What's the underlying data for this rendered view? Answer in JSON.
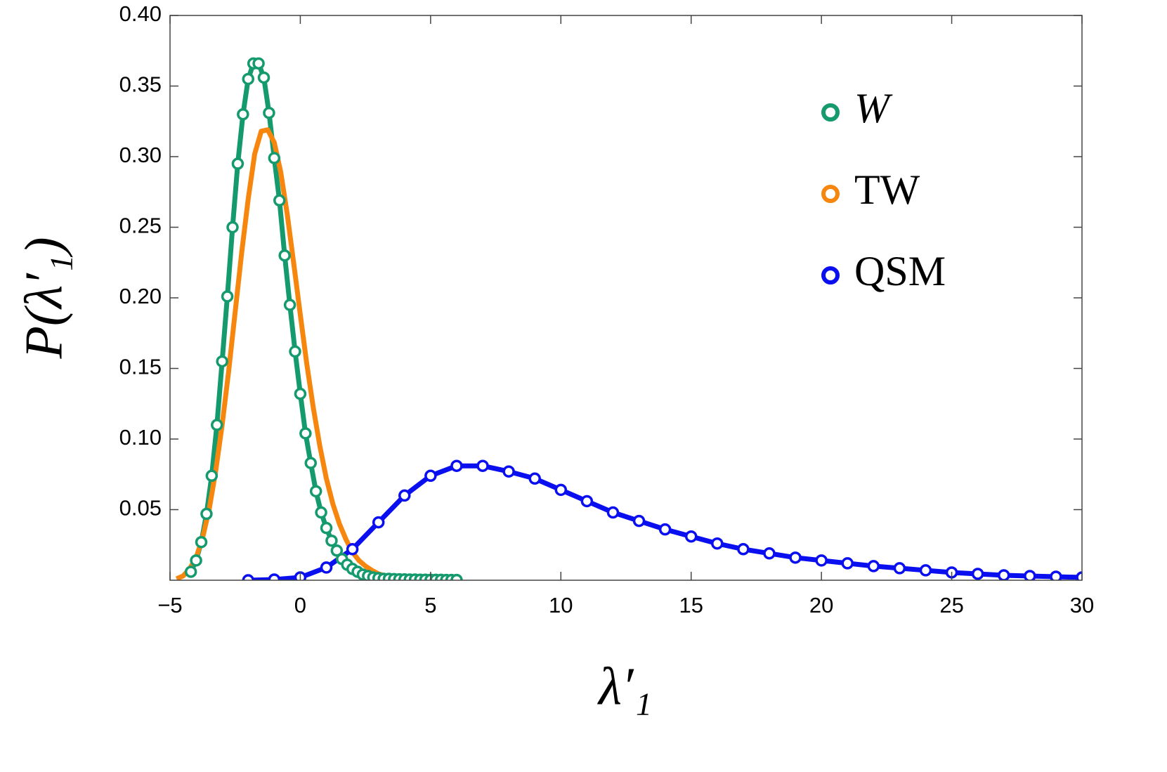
{
  "chart_data": {
    "type": "line",
    "xlabel": "λ′₁",
    "ylabel": "P(λ′₁)",
    "xlim": [
      -5,
      30
    ],
    "ylim": [
      0,
      0.4
    ],
    "xticks": [
      {
        "value": -5,
        "label": "−5"
      },
      0,
      5,
      10,
      15,
      20,
      25,
      30
    ],
    "yticks": [
      0.05,
      {
        "value": 0.1,
        "label": "0.10"
      },
      0.15,
      {
        "value": 0.2,
        "label": "0.20"
      },
      0.25,
      {
        "value": 0.3,
        "label": "0.30"
      },
      0.35,
      {
        "value": 0.4,
        "label": "0.40"
      }
    ],
    "legend": "upper right",
    "series": [
      {
        "name": "W",
        "color": "#159a6e",
        "markers": true,
        "x": [
          -4.2,
          -4.0,
          -3.8,
          -3.6,
          -3.4,
          -3.2,
          -3.0,
          -2.8,
          -2.6,
          -2.4,
          -2.2,
          -2.0,
          -1.8,
          -1.6,
          -1.4,
          -1.2,
          -1.0,
          -0.8,
          -0.6,
          -0.4,
          -0.2,
          0.0,
          0.2,
          0.4,
          0.6,
          0.8,
          1.0,
          1.2,
          1.4,
          1.6,
          1.8,
          2.0,
          2.2,
          2.4,
          2.6,
          2.8,
          3.0,
          3.2,
          3.4,
          3.6,
          3.8,
          4.0,
          4.2,
          4.4,
          4.6,
          4.8,
          5.0,
          5.2,
          5.4,
          5.6,
          5.8,
          6.0
        ],
        "values": [
          0.006,
          0.014,
          0.027,
          0.047,
          0.074,
          0.11,
          0.155,
          0.201,
          0.25,
          0.295,
          0.33,
          0.355,
          0.366,
          0.366,
          0.356,
          0.331,
          0.299,
          0.269,
          0.23,
          0.195,
          0.162,
          0.132,
          0.104,
          0.083,
          0.063,
          0.048,
          0.037,
          0.028,
          0.021,
          0.015,
          0.011,
          0.008,
          0.006,
          0.004,
          0.003,
          0.002,
          0.0015,
          0.001,
          0.001,
          0.0008,
          0.0007,
          0.0006,
          0.0005,
          0.0005,
          0.0004,
          0.0004,
          0.0003,
          0.0003,
          0.0003,
          0.0002,
          0.0002,
          0.0002
        ]
      },
      {
        "name": "TW",
        "color": "#f7860f",
        "markers": false,
        "x": [
          -4.75,
          -4.5,
          -4.25,
          -4.0,
          -3.75,
          -3.5,
          -3.25,
          -3.0,
          -2.75,
          -2.5,
          -2.25,
          -2.0,
          -1.75,
          -1.5,
          -1.25,
          -1.0,
          -0.75,
          -0.5,
          -0.25,
          0.0,
          0.25,
          0.5,
          0.75,
          1.0,
          1.25,
          1.5,
          1.75,
          2.0,
          2.25,
          2.5,
          2.75,
          3.0,
          3.5,
          4.0,
          4.5,
          5.0
        ],
        "values": [
          0.001,
          0.003,
          0.008,
          0.016,
          0.03,
          0.05,
          0.077,
          0.11,
          0.148,
          0.19,
          0.232,
          0.27,
          0.302,
          0.318,
          0.319,
          0.31,
          0.289,
          0.259,
          0.224,
          0.188,
          0.153,
          0.122,
          0.095,
          0.072,
          0.054,
          0.04,
          0.029,
          0.02,
          0.014,
          0.01,
          0.007,
          0.0045,
          0.002,
          0.0008,
          0.0003,
          0.0001
        ]
      },
      {
        "name": "QSM",
        "color": "#0a0ff0",
        "markers": true,
        "x": [
          -2,
          -1,
          0,
          1,
          2,
          3,
          4,
          5,
          6,
          7,
          8,
          9,
          10,
          11,
          12,
          13,
          14,
          15,
          16,
          17,
          18,
          19,
          20,
          21,
          22,
          23,
          24,
          25,
          26,
          27,
          28,
          29,
          30
        ],
        "values": [
          0.0,
          0.0005,
          0.002,
          0.009,
          0.022,
          0.041,
          0.06,
          0.074,
          0.081,
          0.081,
          0.077,
          0.072,
          0.064,
          0.056,
          0.048,
          0.042,
          0.036,
          0.031,
          0.026,
          0.022,
          0.019,
          0.016,
          0.014,
          0.012,
          0.01,
          0.0085,
          0.007,
          0.0055,
          0.0045,
          0.0035,
          0.003,
          0.0025,
          0.002
        ]
      }
    ]
  }
}
